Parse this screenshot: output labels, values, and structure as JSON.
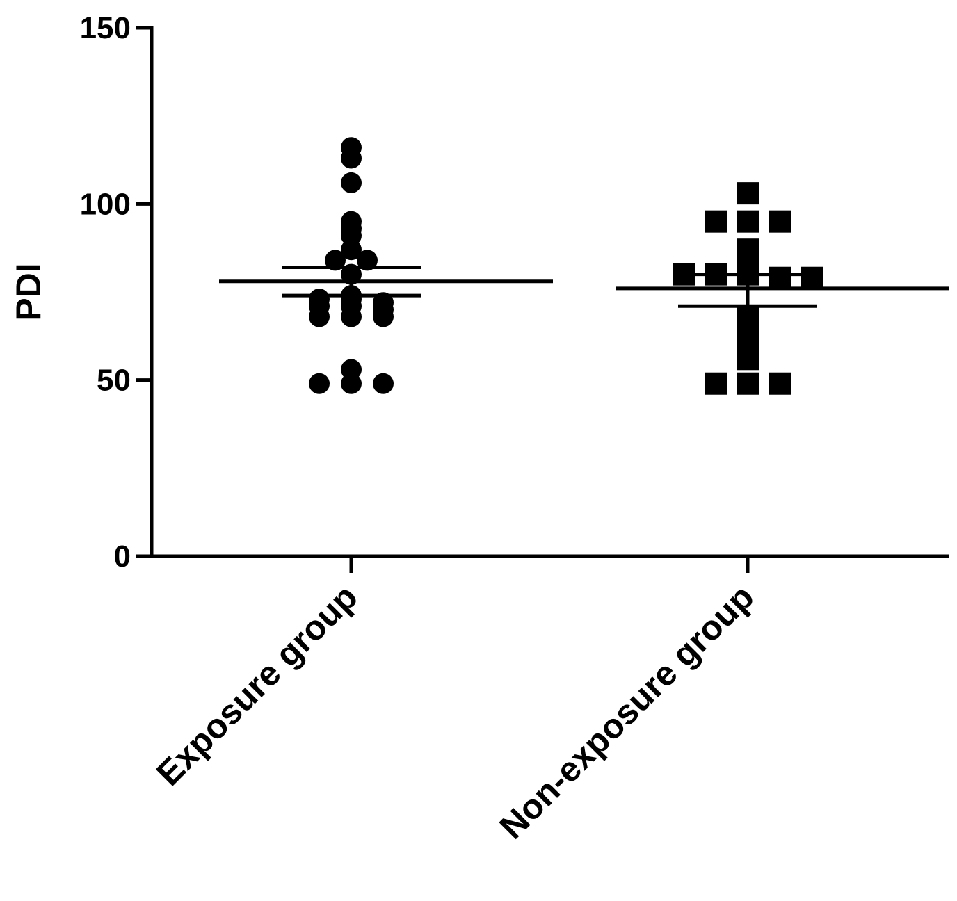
{
  "chart_data": {
    "type": "scatter",
    "ylabel": "PDI",
    "ylim": [
      0,
      150
    ],
    "yticks": [
      0,
      50,
      100,
      150
    ],
    "categories": [
      "Exposure group",
      "Non-exposure group"
    ],
    "grid": false,
    "marker_color": "#000000",
    "series": [
      {
        "category": "Exposure group",
        "marker": "circle",
        "values": [
          116,
          113,
          106,
          95,
          93,
          91,
          87,
          84,
          84,
          80,
          74,
          73,
          73,
          72,
          71,
          71,
          70,
          68,
          68,
          68,
          53,
          49,
          49,
          49
        ],
        "mean": 78,
        "sem_upper": 82,
        "sem_lower": 74
      },
      {
        "category": "Non-exposure group",
        "marker": "square",
        "values": [
          103,
          95,
          95,
          95,
          87,
          83,
          80,
          80,
          80,
          79,
          79,
          68,
          62,
          56,
          49,
          49,
          49
        ],
        "mean": 76,
        "sem_upper": 80,
        "sem_lower": 71
      }
    ]
  }
}
